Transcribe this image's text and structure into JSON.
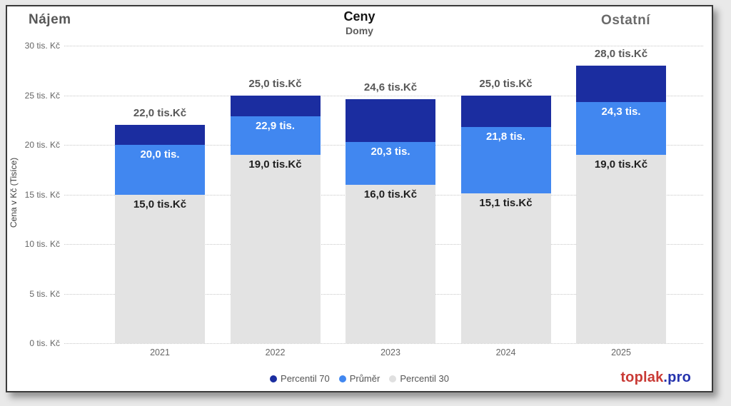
{
  "header": {
    "left_title": "Nájem",
    "title": "Ceny",
    "subtitle": "Domy",
    "right_title": "Ostatní"
  },
  "chart_data": {
    "type": "bar",
    "title": "Ceny",
    "subtitle": "Domy",
    "ylabel": "Cena v Kč (Tisíce)",
    "ylim": [
      0,
      30
    ],
    "grid": "horizontal-dotted",
    "legend_position": "bottom-center",
    "bar_style": "overlapping",
    "categories": [
      "2021",
      "2022",
      "2023",
      "2024",
      "2025"
    ],
    "y_ticks": [
      "0 tis. Kč",
      "5 tis. Kč",
      "10 tis. Kč",
      "15 tis. Kč",
      "20 tis. Kč",
      "25 tis. Kč",
      "30 tis. Kč"
    ],
    "series": [
      {
        "name": "Percentil 70",
        "color": "#1b2da0",
        "values": [
          22.0,
          25.0,
          24.6,
          25.0,
          28.0
        ],
        "labels": [
          "22,0 tis.Kč",
          "25,0 tis.Kč",
          "24,6 tis.Kč",
          "25,0 tis.Kč",
          "28,0 tis.Kč"
        ]
      },
      {
        "name": "Průměr",
        "color": "#4187f0",
        "values": [
          20.0,
          22.9,
          20.3,
          21.8,
          24.3
        ],
        "labels": [
          "20,0 tis.",
          "22,9 tis.",
          "20,3 tis.",
          "21,8 tis.",
          "24,3 tis."
        ]
      },
      {
        "name": "Percentil 30",
        "color": "#e3e3e3",
        "values": [
          15.0,
          19.0,
          16.0,
          15.1,
          19.0
        ],
        "labels": [
          "15,0 tis.Kč",
          "19,0 tis.Kč",
          "16,0 tis.Kč",
          "15,1 tis.Kč",
          "19,0 tis.Kč"
        ]
      }
    ]
  },
  "legend": {
    "items": [
      {
        "label": "Percentil 70",
        "color": "#1b2da0"
      },
      {
        "label": "Průměr",
        "color": "#4187f0"
      },
      {
        "label": "Percentil 30",
        "color": "#e0e0e0"
      }
    ]
  },
  "footer": {
    "logo_primary": "toplak",
    "logo_secondary": ".pro"
  }
}
